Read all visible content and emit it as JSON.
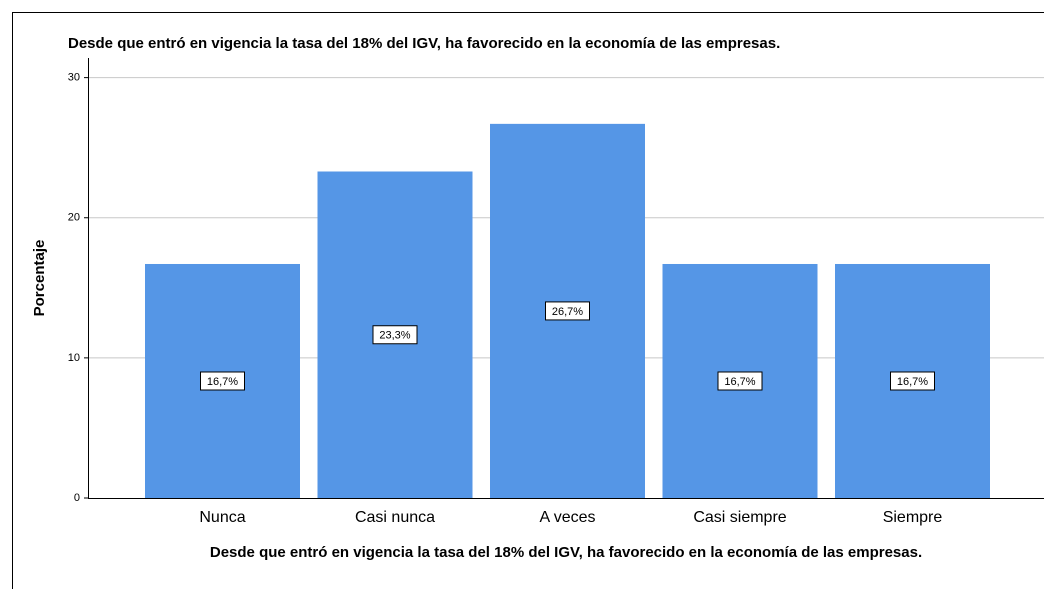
{
  "chart_data": {
    "type": "bar",
    "title": "Desde que entró en vigencia la tasa del 18% del IGV, ha favorecido en la economía de las empresas.",
    "x_label": "Desde que entró en vigencia la tasa del 18% del IGV, ha favorecido en la economía de las empresas.",
    "y_label": "Porcentaje",
    "categories": [
      "Nunca",
      "Casi nunca",
      "A veces",
      "Casi siempre",
      "Siempre"
    ],
    "values": [
      16.7,
      23.3,
      26.7,
      16.7,
      16.7
    ],
    "value_labels": [
      "16,7%",
      "23,3%",
      "26,7%",
      "16,7%",
      "16,7%"
    ],
    "color": "#5596e6",
    "ylim": [
      0,
      31.4
    ],
    "yticks": [
      0,
      10,
      20,
      30
    ],
    "grid": true
  }
}
